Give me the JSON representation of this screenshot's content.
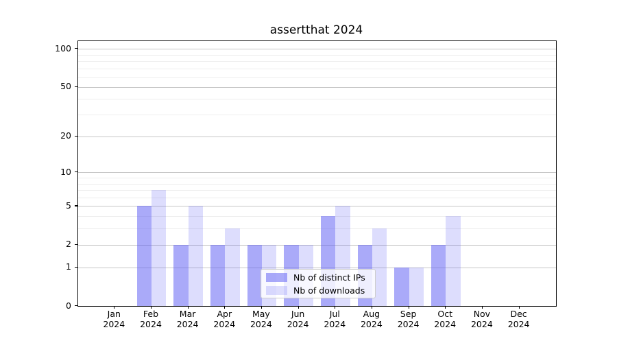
{
  "chart_data": {
    "type": "bar",
    "title": "assertthat 2024",
    "categories": [
      "Jan",
      "Feb",
      "Mar",
      "Apr",
      "May",
      "Jun",
      "Jul",
      "Aug",
      "Sep",
      "Oct",
      "Nov",
      "Dec"
    ],
    "year_label": "2024",
    "series": [
      {
        "name": "Nb of distinct IPs",
        "color": "rgba(85,85,243,0.5)",
        "color_hex": "#a9a9f8",
        "values": [
          0,
          5,
          2,
          2,
          2,
          2,
          4,
          2,
          1,
          2,
          0,
          0
        ]
      },
      {
        "name": "Nb of downloads",
        "color": "rgba(85,85,243,0.2)",
        "color_hex": "#d8d8f8",
        "values": [
          0,
          7,
          5,
          3,
          2,
          2,
          5,
          3,
          1,
          4,
          0,
          0
        ]
      }
    ],
    "xlabel": "",
    "ylabel": "",
    "yscale": "log1p",
    "ylim": [
      0,
      115
    ],
    "y_major_ticks": [
      0,
      1,
      2,
      5,
      10,
      20,
      50,
      100
    ],
    "y_minor_ticks": [
      3,
      4,
      6,
      7,
      8,
      9,
      30,
      40,
      60,
      70,
      80,
      90
    ],
    "grid": true,
    "legend_position": "inside lower center",
    "colors": {
      "background": "#ffffff",
      "axis": "#000000",
      "major_gridline": "#c6c6c6",
      "minor_gridline": "#ededed",
      "text": "#000000"
    }
  }
}
